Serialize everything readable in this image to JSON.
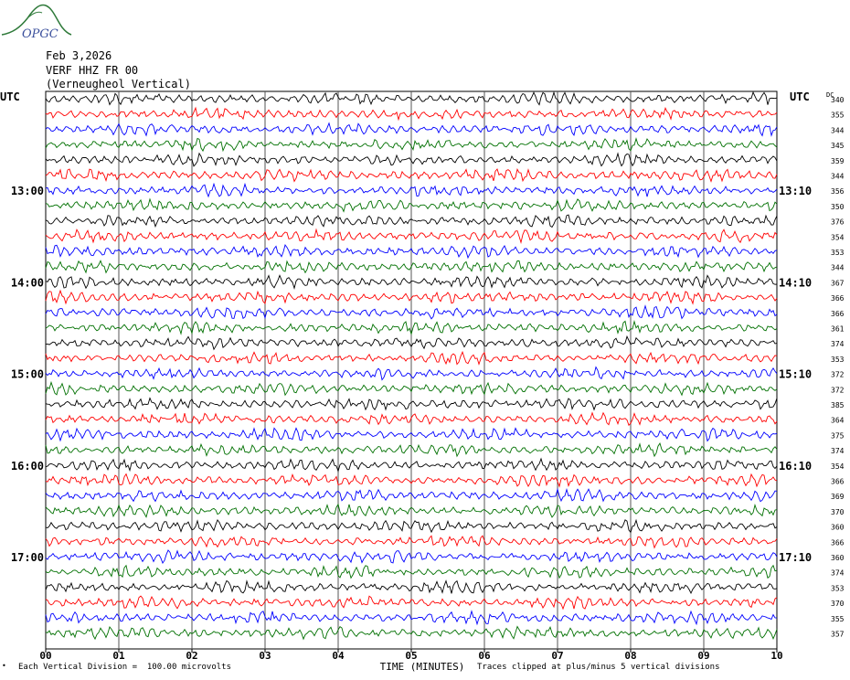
{
  "logo": {
    "text": "OPGC",
    "name": "logo-icon"
  },
  "header": {
    "date": "Feb 3,2026",
    "channel": "VERF HHZ FR 00",
    "station": "(Verneugheol Vertical)"
  },
  "axis": {
    "left_tz": "UTC",
    "right_tz": "UTC",
    "dc_label": "DC",
    "xlabel": "TIME (MINUTES)",
    "xticks": [
      "00",
      "01",
      "02",
      "03",
      "04",
      "05",
      "06",
      "07",
      "08",
      "09",
      "10"
    ]
  },
  "footer": {
    "scale": "Each Vertical Division =  100.00 microvolts",
    "clip": "Traces clipped at plus/minus 5 vertical divisions",
    "mark": "•"
  },
  "colors": {
    "cycle": [
      "#000000",
      "#ff0000",
      "#0000ff",
      "#007000"
    ],
    "grid": "#555555"
  },
  "chart_data": {
    "type": "line",
    "title": "",
    "xlabel": "TIME (MINUTES)",
    "ylabel": "",
    "xlim": [
      0,
      10
    ],
    "grid": true,
    "trace_count": 36,
    "left_time_labels": [
      {
        "row": 6,
        "label": "13:00"
      },
      {
        "row": 12,
        "label": "14:00"
      },
      {
        "row": 18,
        "label": "15:00"
      },
      {
        "row": 24,
        "label": "16:00"
      },
      {
        "row": 30,
        "label": "17:00"
      }
    ],
    "right_time_labels": [
      {
        "row": 6,
        "label": "13:10"
      },
      {
        "row": 12,
        "label": "14:10"
      },
      {
        "row": 18,
        "label": "15:10"
      },
      {
        "row": 24,
        "label": "16:10"
      },
      {
        "row": 30,
        "label": "17:10"
      }
    ],
    "dc_offsets": [
      340,
      355,
      344,
      345,
      359,
      344,
      356,
      350,
      376,
      354,
      353,
      344,
      367,
      366,
      366,
      361,
      374,
      353,
      372,
      372,
      385,
      364,
      375,
      374,
      354,
      366,
      369,
      370,
      360,
      366,
      360,
      374,
      353,
      370,
      355,
      357
    ]
  }
}
